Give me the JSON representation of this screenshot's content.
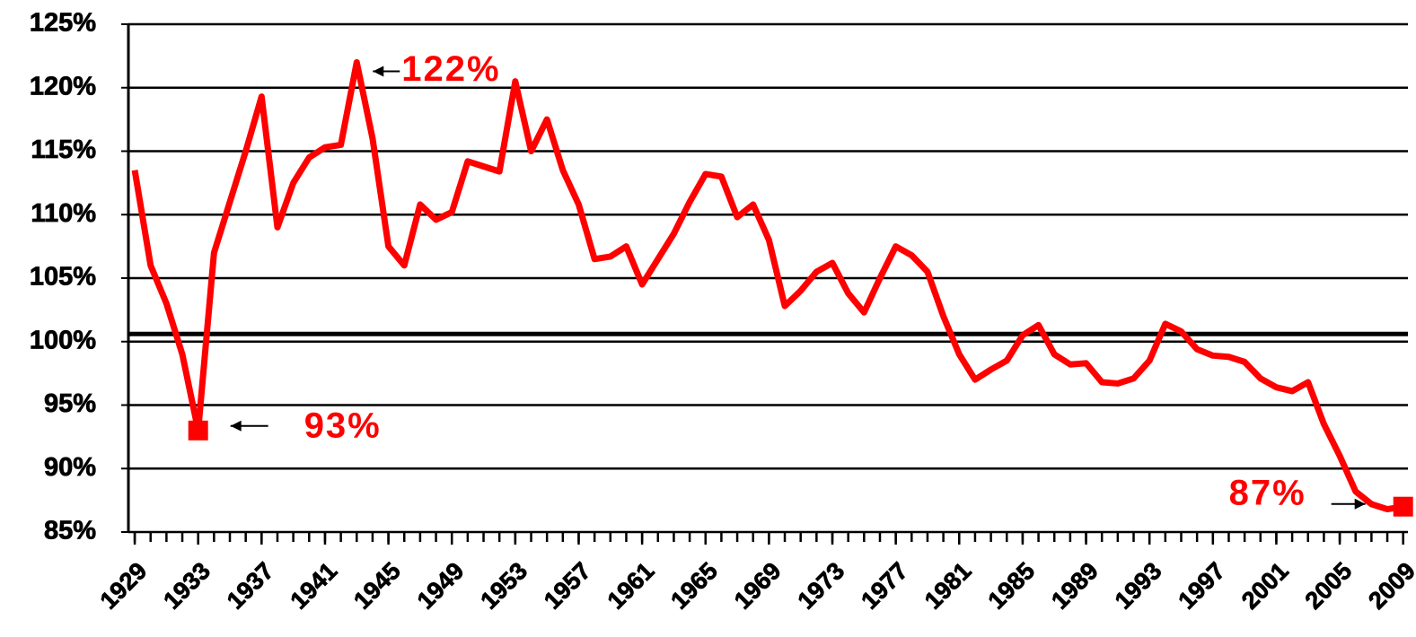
{
  "chart_data": {
    "type": "line",
    "x": [
      1929,
      1930,
      1931,
      1932,
      1933,
      1934,
      1935,
      1936,
      1937,
      1938,
      1939,
      1940,
      1941,
      1942,
      1943,
      1944,
      1945,
      1946,
      1947,
      1948,
      1949,
      1950,
      1951,
      1952,
      1953,
      1954,
      1955,
      1956,
      1957,
      1958,
      1959,
      1960,
      1961,
      1962,
      1963,
      1964,
      1965,
      1966,
      1967,
      1968,
      1969,
      1970,
      1971,
      1972,
      1973,
      1974,
      1975,
      1976,
      1977,
      1978,
      1979,
      1980,
      1981,
      1982,
      1983,
      1984,
      1985,
      1986,
      1987,
      1988,
      1989,
      1990,
      1991,
      1992,
      1993,
      1994,
      1995,
      1996,
      1997,
      1998,
      1999,
      2000,
      2001,
      2002,
      2003,
      2004,
      2005,
      2006,
      2007,
      2008,
      2009
    ],
    "series": [
      {
        "color": "#ff0000",
        "values": [
          113.5,
          106,
          103,
          99,
          93,
          107,
          111,
          115,
          119.3,
          109,
          112.5,
          114.5,
          115.3,
          115.5,
          122,
          116,
          107.5,
          106,
          110.8,
          109.6,
          110.2,
          114.2,
          113.8,
          113.4,
          120.5,
          115,
          117.5,
          113.5,
          110.8,
          106.5,
          106.7,
          107.5,
          104.5,
          106.5,
          108.5,
          111,
          113.2,
          113,
          109.8,
          110.8,
          108,
          102.8,
          104,
          105.5,
          106.2,
          103.8,
          102.3,
          105,
          107.5,
          106.8,
          105.5,
          102,
          99,
          97,
          97.8,
          98.5,
          100.5,
          101.3,
          99,
          98.2,
          98.3,
          96.8,
          96.7,
          97.1,
          98.5,
          101.4,
          100.8,
          99.4,
          98.9,
          98.8,
          98.4,
          97.1,
          96.4,
          96.1,
          96.8,
          93.5,
          91,
          88.2,
          87.2,
          86.8,
          87
        ]
      }
    ],
    "annotations": [
      {
        "text": "122%",
        "x": 1943,
        "y": 122
      },
      {
        "text": "93%",
        "x": 1933,
        "y": 93
      },
      {
        "text": "87%",
        "x": 2009,
        "y": 87
      }
    ],
    "reference_line": 100.6,
    "xlim": [
      1928.6,
      2009.3
    ],
    "xticks": [
      1929,
      1933,
      1937,
      1941,
      1945,
      1949,
      1953,
      1957,
      1961,
      1965,
      1969,
      1973,
      1977,
      1981,
      1985,
      1989,
      1993,
      1997,
      2001,
      2005,
      2009
    ],
    "ylim": [
      85,
      125
    ],
    "yticks": [
      {
        "value": 85,
        "label": "85%"
      },
      {
        "value": 90,
        "label": "90%"
      },
      {
        "value": 95,
        "label": "95%"
      },
      {
        "value": 100,
        "label": "100%"
      },
      {
        "value": 105,
        "label": "105%"
      },
      {
        "value": 110,
        "label": "110%"
      },
      {
        "value": 115,
        "label": "115%"
      },
      {
        "value": 120,
        "label": "120%"
      },
      {
        "value": 125,
        "label": "125%"
      }
    ],
    "grid": true
  }
}
